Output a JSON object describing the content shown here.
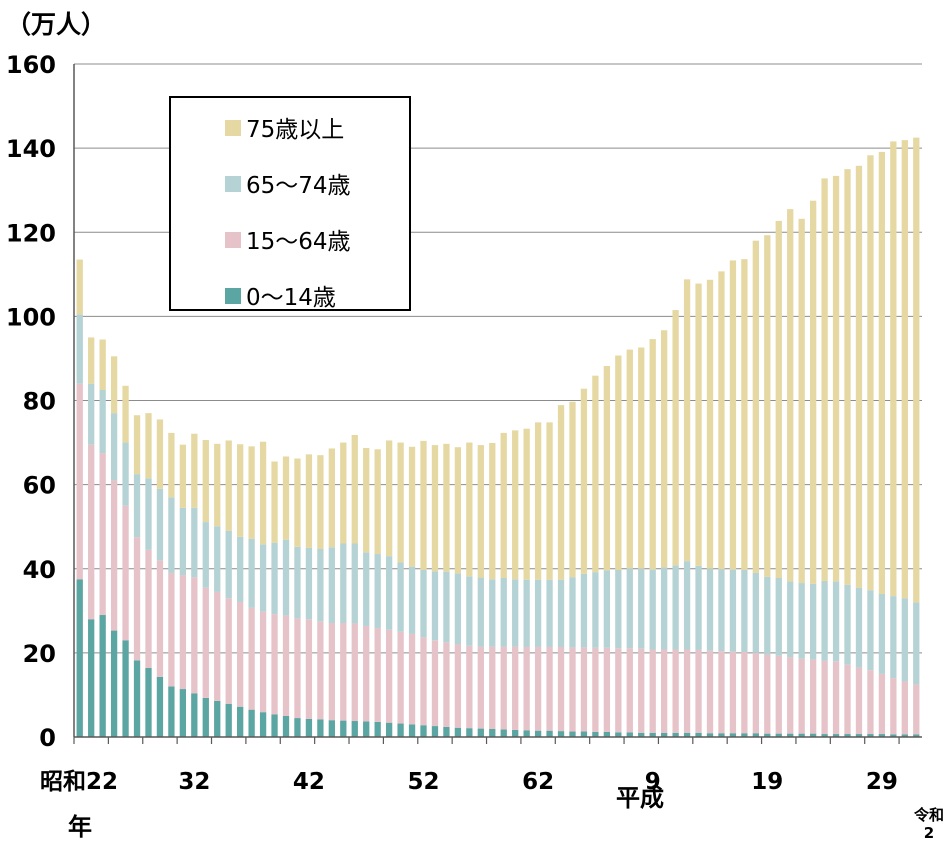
{
  "chart_data": {
    "type": "bar",
    "stacked": true,
    "y_unit_label": "（万人）",
    "ylim": [
      0,
      160
    ],
    "yticks": [
      0,
      20,
      40,
      60,
      80,
      100,
      120,
      140,
      160
    ],
    "grid": true,
    "legend_position": "top-left",
    "x": [
      "S22",
      "S23",
      "S24",
      "S25",
      "S26",
      "S27",
      "S28",
      "S29",
      "S30",
      "S31",
      "S32",
      "S33",
      "S34",
      "S35",
      "S36",
      "S37",
      "S38",
      "S39",
      "S40",
      "S41",
      "S42",
      "S43",
      "S44",
      "S45",
      "S46",
      "S47",
      "S48",
      "S49",
      "S50",
      "S51",
      "S52",
      "S53",
      "S54",
      "S55",
      "S56",
      "S57",
      "S58",
      "S59",
      "S60",
      "S61",
      "S62",
      "S63",
      "H1",
      "H2",
      "H3",
      "H4",
      "H5",
      "H6",
      "H7",
      "H8",
      "H9",
      "H10",
      "H11",
      "H12",
      "H13",
      "H14",
      "H15",
      "H16",
      "H17",
      "H18",
      "H19",
      "H20",
      "H21",
      "H22",
      "H23",
      "H24",
      "H25",
      "H26",
      "H27",
      "H28",
      "H29",
      "H30",
      "R1",
      "R2"
    ],
    "x_tick_labels": [
      {
        "index": 0,
        "text": "昭和22"
      },
      {
        "index": 10,
        "text": "32"
      },
      {
        "index": 20,
        "text": "42"
      },
      {
        "index": 30,
        "text": "52"
      },
      {
        "index": 40,
        "text": "62"
      },
      {
        "index": 50,
        "text": "9"
      },
      {
        "index": 60,
        "text": "19"
      },
      {
        "index": 70,
        "text": "29"
      }
    ],
    "era_labels": {
      "year": "年",
      "heisei": "平成",
      "reiwa_top": "令和",
      "reiwa_bottom": "2"
    },
    "series": [
      {
        "name": "0～14歳",
        "color": "#5BA5A3",
        "values": [
          37.5,
          28,
          29,
          25.3,
          23,
          18.2,
          16.4,
          14.3,
          12,
          11.4,
          10.4,
          9.3,
          8.6,
          7.9,
          7.2,
          6.5,
          5.9,
          5.4,
          5,
          4.5,
          4.3,
          4.2,
          4,
          3.9,
          3.8,
          3.7,
          3.6,
          3.4,
          3.2,
          3,
          2.8,
          2.6,
          2.4,
          2.2,
          2.1,
          2,
          1.9,
          1.8,
          1.7,
          1.6,
          1.5,
          1.5,
          1.4,
          1.3,
          1.3,
          1.2,
          1.2,
          1.1,
          1.1,
          1,
          1,
          1,
          1,
          1,
          1,
          0.9,
          0.9,
          0.9,
          0.9,
          0.9,
          0.8,
          0.8,
          0.8,
          0.8,
          0.8,
          0.7,
          0.7,
          0.7,
          0.7,
          0.7,
          0.7,
          0.6,
          0.6,
          0.6
        ]
      },
      {
        "name": "15～64歳",
        "color": "#E6C3C8",
        "values": [
          46.5,
          41.5,
          38.5,
          35.7,
          32,
          29.3,
          28.1,
          27.7,
          27,
          27.1,
          27.6,
          26.2,
          25.9,
          25.1,
          24.9,
          24.2,
          23.9,
          23.8,
          23.9,
          23.7,
          23.7,
          23.3,
          23.1,
          23.2,
          23.2,
          22.7,
          22.3,
          22.1,
          21.8,
          21.5,
          20.9,
          20.4,
          20.1,
          19.8,
          19.6,
          19.5,
          19.6,
          19.7,
          19.8,
          19.8,
          19.9,
          19.9,
          20,
          20,
          20,
          20,
          20,
          20,
          20,
          20,
          19.8,
          19.8,
          19.8,
          19.8,
          19.7,
          19.6,
          19.5,
          19.4,
          19.3,
          19.1,
          18.8,
          18.5,
          18.2,
          17.8,
          17.6,
          17.4,
          17.3,
          16.5,
          15.8,
          15.2,
          14.3,
          13.4,
          12.6,
          11.9
        ]
      },
      {
        "name": "65～74歳",
        "color": "#B5D3D5",
        "values": [
          16.5,
          14.5,
          15,
          16,
          15,
          15,
          17,
          17,
          18,
          16,
          16.5,
          15.6,
          15.6,
          16,
          15.5,
          16.4,
          16,
          17,
          18,
          17,
          17,
          17.2,
          18,
          18.9,
          19,
          17.5,
          17.6,
          17.5,
          16.5,
          16,
          16,
          16.4,
          16.8,
          16.9,
          16.5,
          16.4,
          16,
          16.3,
          16,
          16,
          16,
          16,
          16,
          16.7,
          17.5,
          18,
          18.4,
          18.6,
          19,
          19,
          19,
          19.5,
          20,
          21,
          20,
          19.5,
          19.5,
          19.5,
          19.5,
          19,
          18.5,
          18.5,
          18,
          18,
          18,
          19,
          19,
          19,
          19,
          19,
          19,
          19.5,
          19.8,
          19.5
        ]
      },
      {
        "name": "75歳以上",
        "color": "#E6D8A2",
        "values": [
          13,
          11,
          12,
          13.5,
          13.5,
          14,
          15.5,
          16.5,
          15.3,
          15,
          17.6,
          19.5,
          19.6,
          21.5,
          22,
          22,
          24.4,
          19.3,
          19.8,
          21,
          22.2,
          22.3,
          23.5,
          24,
          25.8,
          24.8,
          24.9,
          27.5,
          28.5,
          28.5,
          30.7,
          30,
          30.4,
          30,
          31.8,
          31.5,
          32.4,
          34.5,
          35.4,
          35.9,
          37.4,
          37.4,
          41.5,
          41.7,
          44,
          46.7,
          48.6,
          51,
          52,
          52.6,
          54.8,
          56.4,
          60.7,
          67,
          67.1,
          68.7,
          70.8,
          73.5,
          73.9,
          79,
          81.2,
          84.9,
          88.5,
          86.6,
          91.1,
          95.7,
          96.4,
          98.8,
          100.3,
          103.4,
          105.1,
          108.1,
          108.9,
          110.5
        ]
      }
    ]
  }
}
